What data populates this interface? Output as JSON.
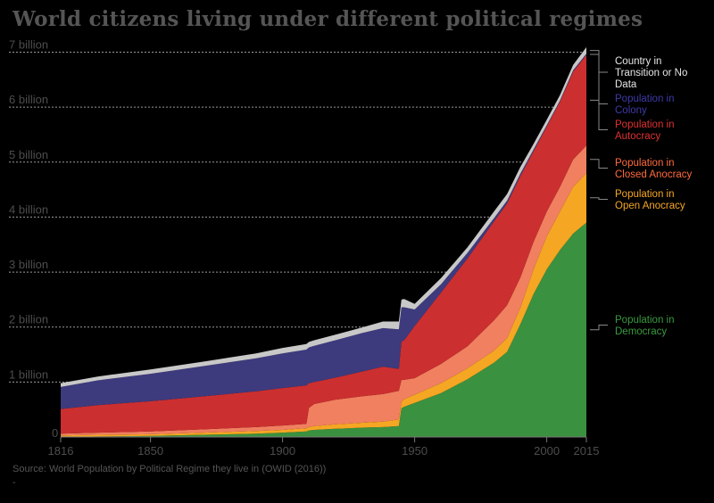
{
  "chart_data": {
    "type": "area",
    "stacked": true,
    "title": "World citizens living under different political regimes",
    "source": "Source: World Population by Political Regime they live in (OWID (2016))",
    "source_mark": "-",
    "xlim": [
      1816,
      2015
    ],
    "ylim": [
      0,
      7300000000
    ],
    "x_ticks": [
      1816,
      1850,
      1900,
      1950,
      2000,
      2015
    ],
    "y_ticks": [
      {
        "value": 0,
        "label": "0"
      },
      {
        "value": 1000000000,
        "label": "1 billion"
      },
      {
        "value": 2000000000,
        "label": "2 billion"
      },
      {
        "value": 3000000000,
        "label": "3 billion"
      },
      {
        "value": 4000000000,
        "label": "4 billion"
      },
      {
        "value": 5000000000,
        "label": "5 billion"
      },
      {
        "value": 6000000000,
        "label": "6 billion"
      },
      {
        "value": 7000000000,
        "label": "7 billion"
      }
    ],
    "x": [
      1816,
      1830,
      1850,
      1870,
      1890,
      1900,
      1909,
      1910,
      1912,
      1920,
      1930,
      1938,
      1944,
      1945,
      1946,
      1950,
      1960,
      1970,
      1980,
      1985,
      1990,
      1995,
      2000,
      2005,
      2010,
      2015
    ],
    "series": [
      {
        "name": "Population in Democracy",
        "color": "#3a913f",
        "values": [
          0,
          10000000.0,
          20000000.0,
          40000000.0,
          60000000.0,
          80000000.0,
          100000000.0,
          120000000.0,
          130000000.0,
          150000000.0,
          170000000.0,
          180000000.0,
          200000000.0,
          520000000.0,
          550000000.0,
          620000000.0,
          800000000.0,
          1050000000.0,
          1350000000.0,
          1550000000.0,
          2050000000.0,
          2600000000.0,
          3050000000.0,
          3400000000.0,
          3700000000.0,
          3900000000.0
        ]
      },
      {
        "name": "Population in Open Anocracy",
        "color": "#f5a623",
        "values": [
          30000000.0,
          30000000.0,
          30000000.0,
          40000000.0,
          50000000.0,
          50000000.0,
          60000000.0,
          60000000.0,
          70000000.0,
          80000000.0,
          90000000.0,
          100000000.0,
          120000000.0,
          120000000.0,
          140000000.0,
          150000000.0,
          180000000.0,
          200000000.0,
          220000000.0,
          250000000.0,
          300000000.0,
          450000000.0,
          600000000.0,
          700000000.0,
          850000000.0,
          900000000.0
        ]
      },
      {
        "name": "Population in Closed Anocracy",
        "color": "#f08060",
        "values": [
          30000000.0,
          40000000.0,
          50000000.0,
          60000000.0,
          70000000.0,
          80000000.0,
          80000000.0,
          350000000.0,
          400000000.0,
          450000000.0,
          480000000.0,
          500000000.0,
          520000000.0,
          400000000.0,
          350000000.0,
          300000000.0,
          350000000.0,
          400000000.0,
          550000000.0,
          600000000.0,
          550000000.0,
          500000000.0,
          450000000.0,
          450000000.0,
          500000000.0,
          500000000.0
        ]
      },
      {
        "name": "Population in Autocracy",
        "color": "#cc2f2f",
        "values": [
          450000000.0,
          500000000.0,
          550000000.0,
          600000000.0,
          650000000.0,
          680000000.0,
          700000000.0,
          450000000.0,
          400000000.0,
          400000000.0,
          450000000.0,
          500000000.0,
          400000000.0,
          700000000.0,
          720000000.0,
          950000000.0,
          1300000000.0,
          1600000000.0,
          1800000000.0,
          1850000000.0,
          1850000000.0,
          1650000000.0,
          1550000000.0,
          1550000000.0,
          1600000000.0,
          1650000000.0
        ]
      },
      {
        "name": "Population in Colony",
        "color": "#3e3a7e",
        "values": [
          400000000.0,
          450000000.0,
          500000000.0,
          550000000.0,
          600000000.0,
          630000000.0,
          650000000.0,
          650000000.0,
          660000000.0,
          680000000.0,
          700000000.0,
          700000000.0,
          720000000.0,
          620000000.0,
          600000000.0,
          300000000.0,
          150000000.0,
          100000000.0,
          60000000.0,
          50000000.0,
          40000000.0,
          30000000.0,
          20000000.0,
          20000000.0,
          20000000.0,
          20000000.0
        ]
      },
      {
        "name": "Country in Transition or No Data",
        "color": "#c8c8c8",
        "values": [
          70000000.0,
          70000000.0,
          80000000.0,
          80000000.0,
          90000000.0,
          100000000.0,
          100000000.0,
          100000000.0,
          100000000.0,
          100000000.0,
          100000000.0,
          120000000.0,
          140000000.0,
          140000000.0,
          150000000.0,
          100000000.0,
          110000000.0,
          100000000.0,
          120000000.0,
          120000000.0,
          120000000.0,
          100000000.0,
          100000000.0,
          100000000.0,
          100000000.0,
          120000000.0
        ]
      }
    ],
    "legend": [
      {
        "lines": [
          "Country in",
          "Transition or No",
          "Data"
        ],
        "color": "#e6e6e6",
        "series": "Country in Transition or No Data"
      },
      {
        "lines": [
          "Population in",
          "Colony"
        ],
        "color": "#3d3aa8",
        "series": "Population in Colony"
      },
      {
        "lines": [
          "Population in",
          "Autocracy"
        ],
        "color": "#e03030",
        "series": "Population in Autocracy"
      },
      {
        "lines": [
          "Population in",
          "Closed Anocracy"
        ],
        "color": "#ff6a3d",
        "series": "Population in Closed Anocracy"
      },
      {
        "lines": [
          "Population in",
          "Open Anocracy"
        ],
        "color": "#f5a623",
        "series": "Population in Open Anocracy"
      },
      {
        "lines": [
          "Population in",
          "Democracy"
        ],
        "color": "#3a9a3f",
        "series": "Population in Democracy"
      }
    ],
    "legend_position": "right",
    "grid": true
  }
}
